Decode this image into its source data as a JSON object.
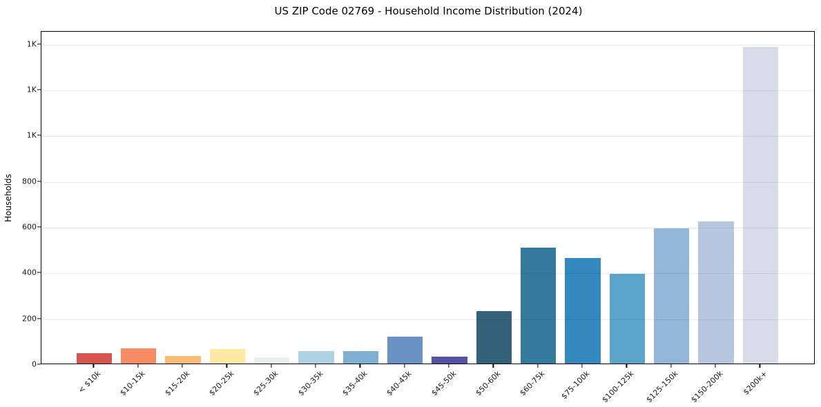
{
  "title": "US ZIP Code 02769 - Household Income Distribution (2024)",
  "chart_data": {
    "type": "bar",
    "title": "US ZIP Code 02769 - Household Income Distribution (2024)",
    "xlabel": "",
    "ylabel": "Households",
    "categories": [
      "< $10k",
      "$10-15k",
      "$15-20k",
      "$20-25k",
      "$25-30k",
      "$30-35k",
      "$35-40k",
      "$40-45k",
      "$45-50k",
      "$50-60k",
      "$60-75k",
      "$75-100k",
      "$100-125k",
      "$125-150k",
      "$150-200k",
      "$200k+"
    ],
    "values": [
      45,
      65,
      33,
      63,
      28,
      53,
      53,
      117,
      29,
      230,
      505,
      460,
      393,
      592,
      620,
      1385
    ],
    "bar_colors": [
      "#d6564f",
      "#f58a63",
      "#fcbe75",
      "#fde9a4",
      "#e8f1ed",
      "#aed1e3",
      "#7fb0d2",
      "#6a92c4",
      "#5653a6",
      "#34617a",
      "#347a9e",
      "#3389bd",
      "#5ba4ca",
      "#92b7d9",
      "#b6c7df",
      "#d9dbe8"
    ],
    "y_ticks": [
      {
        "value": 0,
        "label": "0"
      },
      {
        "value": 200,
        "label": "200"
      },
      {
        "value": 400,
        "label": "400"
      },
      {
        "value": 600,
        "label": "600"
      },
      {
        "value": 800,
        "label": "800"
      },
      {
        "value": 1000,
        "label": "1K"
      },
      {
        "value": 1200,
        "label": "1K"
      },
      {
        "value": 1400,
        "label": "1K"
      }
    ],
    "ylim": [
      0,
      1456
    ],
    "grid": "horizontal",
    "legend": "none"
  }
}
